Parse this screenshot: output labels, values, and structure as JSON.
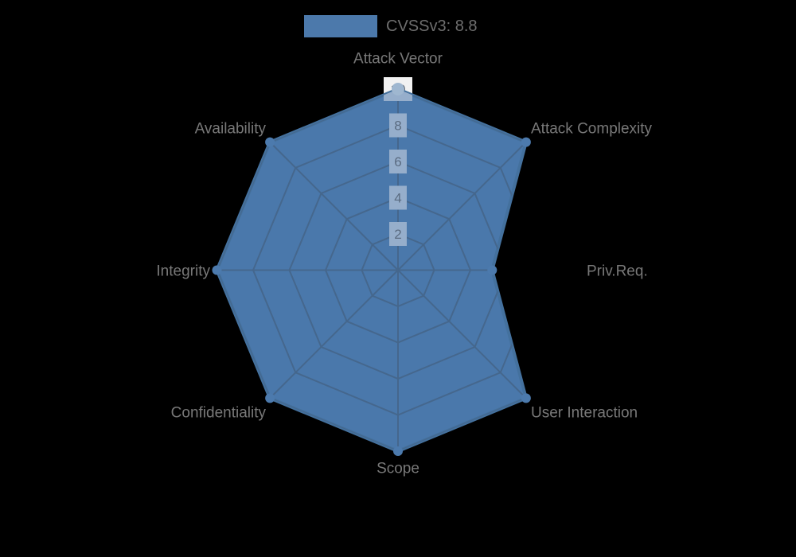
{
  "legend": {
    "label": "CVSSv3: 8.8",
    "swatch_color": "#4C79AB",
    "text_color": "#6E6E6E"
  },
  "colors": {
    "background": "#000000",
    "fill": "#4A78AB",
    "stroke": "#44719E",
    "grid": "#45678D",
    "tick_backdrop": "#F2F2F2",
    "tick_backdrop_over_fill": "#96AECB",
    "tick_text": "#4A4F57",
    "tick_text_over_fill": "#5A6B80",
    "axis_label": "#787878",
    "marker": "#4C7AAD",
    "marker_top": "#9FB7D0"
  },
  "chart_data": {
    "type": "radar",
    "title": "CVSSv3: 8.8",
    "axes": [
      "Attack Vector",
      "Attack Complexity",
      "Priv.Req.",
      "User Interaction",
      "Scope",
      "Confidentiality",
      "Integrity",
      "Availability"
    ],
    "series": [
      {
        "name": "CVSSv3: 8.8",
        "values": [
          10,
          10,
          5.2,
          10,
          10,
          10,
          10,
          10
        ]
      }
    ],
    "scale": {
      "min": 0,
      "max": 10,
      "tick_step": 2,
      "tick_labels": [
        "2",
        "4",
        "6",
        "8",
        "10"
      ]
    },
    "legend_position": "top",
    "grid": true,
    "axis_start": "top",
    "direction": "clockwise"
  }
}
